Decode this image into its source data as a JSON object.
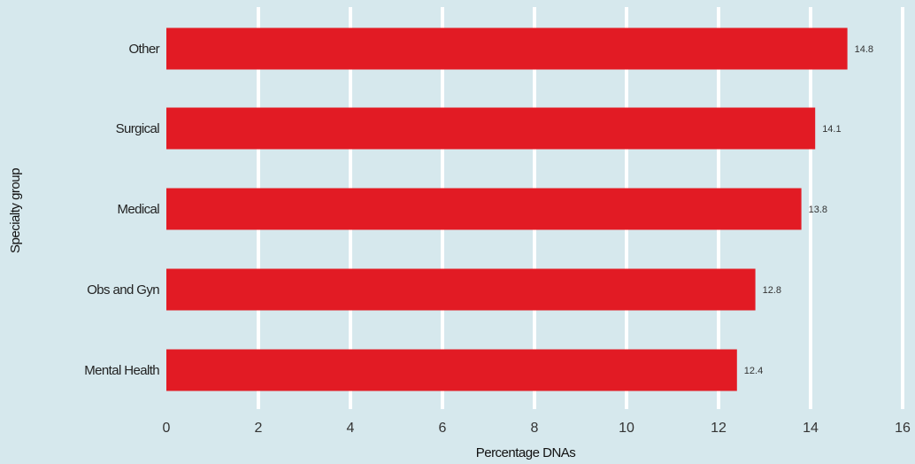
{
  "chart_data": {
    "type": "bar",
    "orientation": "horizontal",
    "categories": [
      "Other",
      "Surgical",
      "Medical",
      "Obs and Gyn",
      "Mental Health"
    ],
    "values": [
      14.8,
      14.1,
      13.8,
      12.8,
      12.4
    ],
    "value_labels": [
      "14.8",
      "14.1",
      "13.8",
      "12.8",
      "12.4"
    ],
    "xlabel": "Percentage DNAs",
    "ylabel": "Specialty group",
    "xlim": [
      0,
      16
    ],
    "x_ticks": [
      0,
      2,
      4,
      6,
      8,
      10,
      12,
      14,
      16
    ],
    "x_tick_labels": [
      "0",
      "2",
      "4",
      "6",
      "8",
      "10",
      "12",
      "14",
      "16"
    ],
    "grid": "vertical",
    "legend": "none",
    "colors": {
      "bar": "#e21b24",
      "background": "#d6e8ed",
      "grid": "#ffffff"
    }
  }
}
